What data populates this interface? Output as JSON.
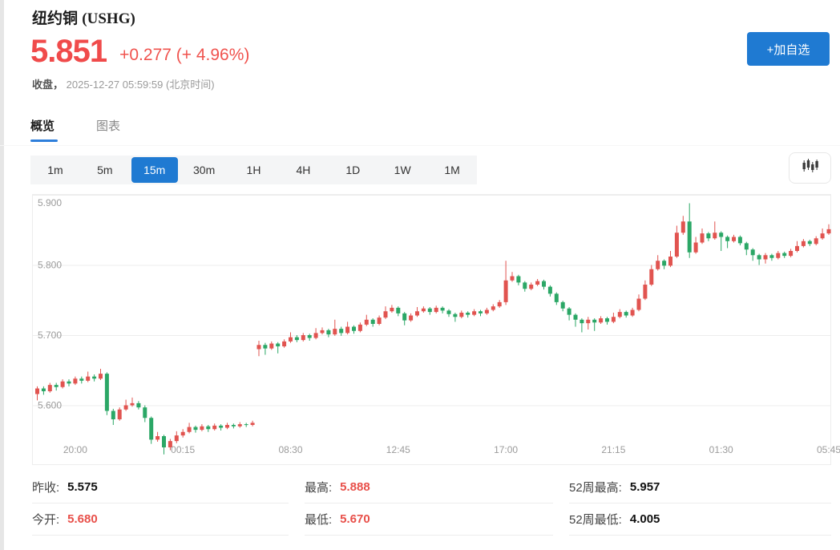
{
  "header": {
    "title": "纽约铜",
    "symbol": "(USHG)",
    "price": "5.851",
    "change": "+0.277 (+ 4.96%)",
    "status_label": "收盘，",
    "timestamp": "2025-12-27 05:59:59 (北京时间)",
    "add_watchlist_label": "+加自选"
  },
  "colors": {
    "accent_blue": "#1f7ad2",
    "price_red": "#f04b4b",
    "up_red": "#e15450",
    "down_green": "#2ba766"
  },
  "tabs": [
    {
      "label": "概览",
      "active": true
    },
    {
      "label": "图表",
      "active": false
    }
  ],
  "timeframes": {
    "options": [
      "1m",
      "5m",
      "15m",
      "30m",
      "1H",
      "4H",
      "1D",
      "1W",
      "1M"
    ],
    "selected": "15m"
  },
  "chart_toolbar": {
    "chart_type_icon": "candlestick-icon"
  },
  "chart_data": {
    "type": "candlestick",
    "interval": "15m",
    "up_color": "#e15450",
    "down_color": "#2ba766",
    "grid": true,
    "ylim": [
      5.516,
      5.9
    ],
    "y_ticks": [
      {
        "price": 5.9,
        "label": "5.900"
      },
      {
        "price": 5.8,
        "label": "5.800"
      },
      {
        "price": 5.7,
        "label": "5.700"
      },
      {
        "price": 5.6,
        "label": "5.600"
      }
    ],
    "x_ticks": [
      {
        "i": 6,
        "label": "20:00"
      },
      {
        "i": 23,
        "label": "00:15"
      },
      {
        "i": 40,
        "label": "08:30"
      },
      {
        "i": 57,
        "label": "12:45"
      },
      {
        "i": 74,
        "label": "17:00"
      },
      {
        "i": 91,
        "label": "21:15"
      },
      {
        "i": 108,
        "label": "01:30"
      },
      {
        "i": 125,
        "label": "05:45"
      }
    ],
    "candles_format": [
      "open",
      "high",
      "low",
      "close"
    ],
    "candles": [
      [
        5.616,
        5.627,
        5.607,
        5.624
      ],
      [
        5.624,
        5.627,
        5.615,
        5.62
      ],
      [
        5.62,
        5.632,
        5.618,
        5.629
      ],
      [
        5.629,
        5.632,
        5.621,
        5.626
      ],
      [
        5.626,
        5.637,
        5.624,
        5.634
      ],
      [
        5.634,
        5.637,
        5.627,
        5.631
      ],
      [
        5.631,
        5.641,
        5.629,
        5.638
      ],
      [
        5.638,
        5.641,
        5.631,
        5.635
      ],
      [
        5.635,
        5.648,
        5.633,
        5.641
      ],
      [
        5.641,
        5.644,
        5.634,
        5.638
      ],
      [
        5.638,
        5.652,
        5.636,
        5.645
      ],
      [
        5.645,
        5.647,
        5.586,
        5.592
      ],
      [
        5.592,
        5.595,
        5.572,
        5.58
      ],
      [
        5.58,
        5.597,
        5.578,
        5.594
      ],
      [
        5.594,
        5.608,
        5.592,
        5.6
      ],
      [
        5.6,
        5.611,
        5.598,
        5.603
      ],
      [
        5.603,
        5.606,
        5.594,
        5.597
      ],
      [
        5.597,
        5.6,
        5.576,
        5.582
      ],
      [
        5.582,
        5.584,
        5.545,
        5.551
      ],
      [
        5.551,
        5.562,
        5.548,
        5.556
      ],
      [
        5.556,
        5.558,
        5.53,
        5.54
      ],
      [
        5.54,
        5.552,
        5.536,
        5.549
      ],
      [
        5.549,
        5.563,
        5.546,
        5.557
      ],
      [
        5.557,
        5.566,
        5.554,
        5.562
      ],
      [
        5.562,
        5.575,
        5.56,
        5.569
      ],
      [
        5.569,
        5.571,
        5.561,
        5.565
      ],
      [
        5.565,
        5.573,
        5.563,
        5.57
      ],
      [
        5.57,
        5.572,
        5.562,
        5.566
      ],
      [
        5.566,
        5.574,
        5.564,
        5.571
      ],
      [
        5.571,
        5.573,
        5.564,
        5.568
      ],
      [
        5.568,
        5.575,
        5.566,
        5.572
      ],
      [
        5.572,
        5.574,
        5.567,
        5.57
      ],
      [
        5.57,
        5.576,
        5.568,
        5.573
      ],
      [
        5.573,
        5.575,
        5.569,
        5.572
      ],
      [
        5.572,
        5.578,
        5.57,
        5.575
      ],
      [
        5.68,
        5.692,
        5.67,
        5.686
      ],
      [
        5.686,
        5.689,
        5.672,
        5.681
      ],
      [
        5.681,
        5.691,
        5.679,
        5.688
      ],
      [
        5.688,
        5.69,
        5.674,
        5.684
      ],
      [
        5.684,
        5.694,
        5.682,
        5.691
      ],
      [
        5.691,
        5.704,
        5.689,
        5.697
      ],
      [
        5.697,
        5.7,
        5.69,
        5.693
      ],
      [
        5.693,
        5.703,
        5.691,
        5.7
      ],
      [
        5.7,
        5.702,
        5.692,
        5.696
      ],
      [
        5.696,
        5.71,
        5.694,
        5.703
      ],
      [
        5.703,
        5.711,
        5.701,
        5.707
      ],
      [
        5.707,
        5.709,
        5.697,
        5.701
      ],
      [
        5.701,
        5.722,
        5.699,
        5.709
      ],
      [
        5.709,
        5.712,
        5.699,
        5.703
      ],
      [
        5.703,
        5.719,
        5.701,
        5.712
      ],
      [
        5.712,
        5.714,
        5.702,
        5.706
      ],
      [
        5.706,
        5.718,
        5.704,
        5.715
      ],
      [
        5.715,
        5.729,
        5.713,
        5.722
      ],
      [
        5.722,
        5.724,
        5.712,
        5.716
      ],
      [
        5.716,
        5.728,
        5.714,
        5.725
      ],
      [
        5.725,
        5.741,
        5.723,
        5.734
      ],
      [
        5.734,
        5.743,
        5.732,
        5.739
      ],
      [
        5.739,
        5.741,
        5.727,
        5.731
      ],
      [
        5.731,
        5.733,
        5.714,
        5.721
      ],
      [
        5.721,
        5.731,
        5.719,
        5.728
      ],
      [
        5.728,
        5.74,
        5.726,
        5.734
      ],
      [
        5.734,
        5.741,
        5.732,
        5.738
      ],
      [
        5.738,
        5.74,
        5.729,
        5.733
      ],
      [
        5.733,
        5.742,
        5.731,
        5.739
      ],
      [
        5.739,
        5.741,
        5.731,
        5.735
      ],
      [
        5.735,
        5.737,
        5.726,
        5.73
      ],
      [
        5.73,
        5.732,
        5.719,
        5.726
      ],
      [
        5.726,
        5.735,
        5.724,
        5.732
      ],
      [
        5.732,
        5.734,
        5.725,
        5.729
      ],
      [
        5.729,
        5.737,
        5.727,
        5.734
      ],
      [
        5.734,
        5.736,
        5.727,
        5.731
      ],
      [
        5.731,
        5.739,
        5.729,
        5.736
      ],
      [
        5.736,
        5.744,
        5.734,
        5.741
      ],
      [
        5.741,
        5.75,
        5.739,
        5.747
      ],
      [
        5.747,
        5.806,
        5.743,
        5.778
      ],
      [
        5.778,
        5.79,
        5.776,
        5.784
      ],
      [
        5.784,
        5.786,
        5.771,
        5.775
      ],
      [
        5.775,
        5.777,
        5.762,
        5.766
      ],
      [
        5.766,
        5.775,
        5.764,
        5.772
      ],
      [
        5.772,
        5.78,
        5.77,
        5.777
      ],
      [
        5.777,
        5.779,
        5.765,
        5.769
      ],
      [
        5.769,
        5.771,
        5.755,
        5.759
      ],
      [
        5.759,
        5.761,
        5.743,
        5.747
      ],
      [
        5.747,
        5.749,
        5.734,
        5.738
      ],
      [
        5.738,
        5.74,
        5.721,
        5.729
      ],
      [
        5.729,
        5.731,
        5.712,
        5.722
      ],
      [
        5.722,
        5.724,
        5.704,
        5.717
      ],
      [
        5.717,
        5.726,
        5.708,
        5.722
      ],
      [
        5.722,
        5.724,
        5.706,
        5.718
      ],
      [
        5.718,
        5.727,
        5.716,
        5.724
      ],
      [
        5.724,
        5.726,
        5.715,
        5.719
      ],
      [
        5.719,
        5.732,
        5.717,
        5.726
      ],
      [
        5.726,
        5.737,
        5.724,
        5.733
      ],
      [
        5.733,
        5.735,
        5.725,
        5.728
      ],
      [
        5.728,
        5.739,
        5.726,
        5.736
      ],
      [
        5.736,
        5.758,
        5.734,
        5.752
      ],
      [
        5.752,
        5.778,
        5.75,
        5.772
      ],
      [
        5.772,
        5.8,
        5.77,
        5.794
      ],
      [
        5.794,
        5.814,
        5.792,
        5.806
      ],
      [
        5.806,
        5.808,
        5.794,
        5.799
      ],
      [
        5.799,
        5.82,
        5.797,
        5.812
      ],
      [
        5.812,
        5.856,
        5.81,
        5.846
      ],
      [
        5.846,
        5.87,
        5.843,
        5.862
      ],
      [
        5.862,
        5.888,
        5.81,
        5.818
      ],
      [
        5.818,
        5.84,
        5.816,
        5.832
      ],
      [
        5.832,
        5.852,
        5.83,
        5.845
      ],
      [
        5.845,
        5.847,
        5.834,
        5.838
      ],
      [
        5.838,
        5.862,
        5.836,
        5.846
      ],
      [
        5.846,
        5.848,
        5.82,
        5.84
      ],
      [
        5.84,
        5.842,
        5.824,
        5.834
      ],
      [
        5.834,
        5.843,
        5.832,
        5.84
      ],
      [
        5.84,
        5.842,
        5.828,
        5.831
      ],
      [
        5.831,
        5.833,
        5.814,
        5.822
      ],
      [
        5.822,
        5.824,
        5.806,
        5.814
      ],
      [
        5.814,
        5.816,
        5.8,
        5.808
      ],
      [
        5.808,
        5.817,
        5.802,
        5.814
      ],
      [
        5.814,
        5.816,
        5.806,
        5.81
      ],
      [
        5.81,
        5.82,
        5.808,
        5.817
      ],
      [
        5.817,
        5.819,
        5.81,
        5.813
      ],
      [
        5.813,
        5.823,
        5.811,
        5.82
      ],
      [
        5.82,
        5.834,
        5.818,
        5.827
      ],
      [
        5.827,
        5.837,
        5.825,
        5.834
      ],
      [
        5.834,
        5.836,
        5.827,
        5.83
      ],
      [
        5.83,
        5.841,
        5.828,
        5.838
      ],
      [
        5.838,
        5.852,
        5.836,
        5.845
      ],
      [
        5.845,
        5.858,
        5.843,
        5.851
      ]
    ]
  },
  "stats": {
    "columns": [
      {
        "rows": [
          {
            "label": "昨收:",
            "value": "5.575",
            "red": false
          },
          {
            "label": "今开:",
            "value": "5.680",
            "red": true
          }
        ]
      },
      {
        "rows": [
          {
            "label": "最高:",
            "value": "5.888",
            "red": true
          },
          {
            "label": "最低:",
            "value": "5.670",
            "red": true
          }
        ]
      },
      {
        "rows": [
          {
            "label": "52周最高:",
            "value": "5.957",
            "red": false
          },
          {
            "label": "52周最低:",
            "value": "4.005",
            "red": false
          }
        ]
      }
    ]
  }
}
